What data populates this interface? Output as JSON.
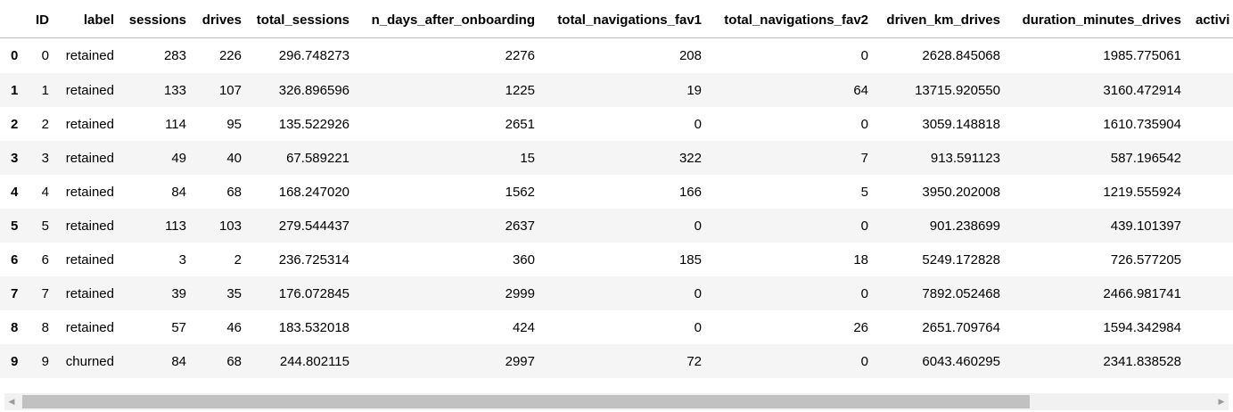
{
  "table": {
    "columns": [
      "",
      "ID",
      "label",
      "sessions",
      "drives",
      "total_sessions",
      "n_days_after_onboarding",
      "total_navigations_fav1",
      "total_navigations_fav2",
      "driven_km_drives",
      "duration_minutes_drives",
      "activi"
    ],
    "rows": [
      [
        "0",
        "0",
        "retained",
        "283",
        "226",
        "296.748273",
        "2276",
        "208",
        "0",
        "2628.845068",
        "1985.775061"
      ],
      [
        "1",
        "1",
        "retained",
        "133",
        "107",
        "326.896596",
        "1225",
        "19",
        "64",
        "13715.920550",
        "3160.472914"
      ],
      [
        "2",
        "2",
        "retained",
        "114",
        "95",
        "135.522926",
        "2651",
        "0",
        "0",
        "3059.148818",
        "1610.735904"
      ],
      [
        "3",
        "3",
        "retained",
        "49",
        "40",
        "67.589221",
        "15",
        "322",
        "7",
        "913.591123",
        "587.196542"
      ],
      [
        "4",
        "4",
        "retained",
        "84",
        "68",
        "168.247020",
        "1562",
        "166",
        "5",
        "3950.202008",
        "1219.555924"
      ],
      [
        "5",
        "5",
        "retained",
        "113",
        "103",
        "279.544437",
        "2637",
        "0",
        "0",
        "901.238699",
        "439.101397"
      ],
      [
        "6",
        "6",
        "retained",
        "3",
        "2",
        "236.725314",
        "360",
        "185",
        "18",
        "5249.172828",
        "726.577205"
      ],
      [
        "7",
        "7",
        "retained",
        "39",
        "35",
        "176.072845",
        "2999",
        "0",
        "0",
        "7892.052468",
        "2466.981741"
      ],
      [
        "8",
        "8",
        "retained",
        "57",
        "46",
        "183.532018",
        "424",
        "0",
        "26",
        "2651.709764",
        "1594.342984"
      ],
      [
        "9",
        "9",
        "churned",
        "84",
        "68",
        "244.802115",
        "2997",
        "72",
        "0",
        "6043.460295",
        "2341.838528"
      ]
    ]
  },
  "scrollbar": {
    "left_arrow_icon": "chevron-left-icon",
    "right_arrow_icon": "chevron-right-icon",
    "thumb_position": 0.0
  },
  "colors": {
    "stripe": "#f5f5f5",
    "header_border": "#bdbdbd",
    "scroll_track": "#f1f1f1",
    "scroll_thumb": "#c1c1c1"
  }
}
